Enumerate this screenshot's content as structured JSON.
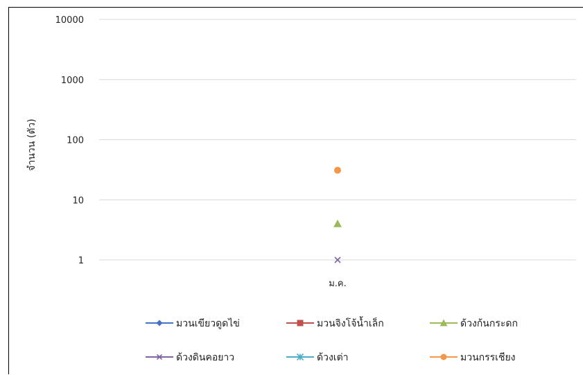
{
  "chart_data": {
    "type": "scatter",
    "title": "",
    "xlabel": "",
    "ylabel": "จำนวน (ตัว)",
    "y_scale": "log10",
    "ylim": [
      1,
      10000
    ],
    "yticks": [
      "1",
      "10",
      "100",
      "1000",
      "10000"
    ],
    "categories": [
      "ม.ค."
    ],
    "grid": true,
    "legend_position": "bottom",
    "series": [
      {
        "name": "มวนเขียวดูดไข่",
        "values": [
          null
        ],
        "color": "#4472C4",
        "marker": "diamond"
      },
      {
        "name": "มวนจิงโจ้น้ำเล็ก",
        "values": [
          null
        ],
        "color": "#C0504D",
        "marker": "square"
      },
      {
        "name": "ด้วงก้นกระดก",
        "values": [
          4
        ],
        "color": "#9BBB59",
        "marker": "triangle"
      },
      {
        "name": "ด้วงดินคอยาว",
        "values": [
          1
        ],
        "color": "#8064A2",
        "marker": "x"
      },
      {
        "name": "ด้วงเต่า",
        "values": [
          null
        ],
        "color": "#4BACC6",
        "marker": "star"
      },
      {
        "name": "มวนกรรเชียง",
        "values": [
          31
        ],
        "color": "#F79646",
        "marker": "circle"
      }
    ]
  }
}
